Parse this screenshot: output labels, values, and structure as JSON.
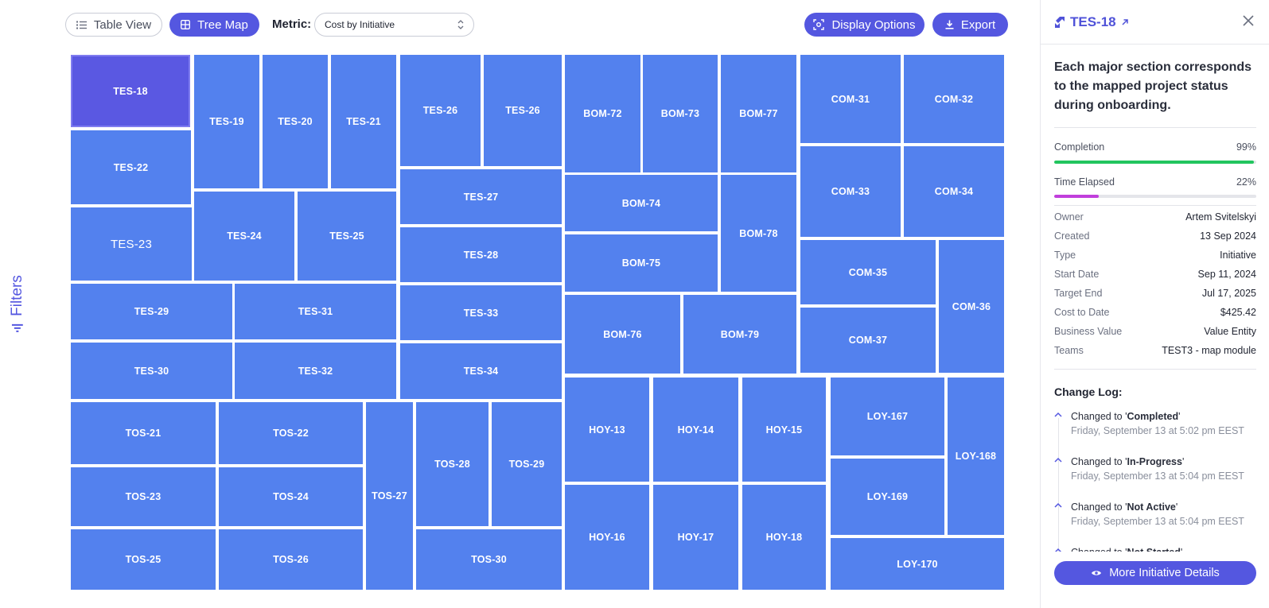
{
  "filters": {
    "label": "Filters"
  },
  "toolbar": {
    "table_view": "Table View",
    "tree_map": "Tree Map",
    "metric_label": "Metric:",
    "metric_value": "Cost by Initiative",
    "display_options": "Display Options",
    "export": "Export"
  },
  "treemap": {
    "selected": "TES-18",
    "tiles": [
      "TES-18",
      "TES-19",
      "TES-20",
      "TES-21",
      "TES-26",
      "TES-26",
      "BOM-72",
      "BOM-73",
      "BOM-77",
      "COM-31",
      "COM-32",
      "TES-22",
      "TES-27",
      "BOM-74",
      "BOM-78",
      "COM-33",
      "COM-34",
      "TES-23",
      "TES-24",
      "TES-25",
      "TES-28",
      "BOM-75",
      "COM-35",
      "COM-36",
      "TES-29",
      "TES-31",
      "TES-33",
      "BOM-76",
      "BOM-79",
      "COM-37",
      "TES-30",
      "TES-32",
      "TES-34",
      "TOS-21",
      "TOS-22",
      "TOS-27",
      "TOS-28",
      "TOS-29",
      "HOY-13",
      "HOY-14",
      "HOY-15",
      "LOY-167",
      "LOY-168",
      "TOS-23",
      "TOS-24",
      "LOY-169",
      "TOS-25",
      "TOS-26",
      "TOS-30",
      "HOY-16",
      "HOY-17",
      "HOY-18",
      "LOY-170"
    ]
  },
  "panel": {
    "title": "TES-18",
    "description": "Each major section corresponds to the mapped project status during onboarding.",
    "completion": {
      "label": "Completion",
      "value": "99%",
      "fraction": 0.99,
      "color": "#22c55e"
    },
    "elapsed": {
      "label": "Time Elapsed",
      "value": "22%",
      "fraction": 0.22,
      "color": "#c13fdc"
    },
    "details": [
      {
        "label": "Owner",
        "value": "Artem Svitelskyi"
      },
      {
        "label": "Created",
        "value": "13 Sep 2024"
      },
      {
        "label": "Type",
        "value": "Initiative"
      },
      {
        "label": "Start Date",
        "value": "Sep 11, 2024"
      },
      {
        "label": "Target End",
        "value": "Jul 17, 2025"
      },
      {
        "label": "Cost to Date",
        "value": "$425.42"
      },
      {
        "label": "Business Value",
        "value": "Value Entity"
      },
      {
        "label": "Teams",
        "value": "TEST3 - map module"
      }
    ],
    "change_log_title": "Change Log:",
    "change_log": [
      {
        "prefix": "Changed to '",
        "status": "Completed",
        "suffix": "'",
        "time": "Friday, September 13 at 5:02 pm EEST"
      },
      {
        "prefix": "Changed to '",
        "status": "In-Progress",
        "suffix": "'",
        "time": "Friday, September 13 at 5:04 pm EEST"
      },
      {
        "prefix": "Changed to '",
        "status": "Not Active",
        "suffix": "'",
        "time": "Friday, September 13 at 5:04 pm EEST"
      },
      {
        "prefix": "Changed to '",
        "status": "Not Started",
        "suffix": "'",
        "time": ""
      }
    ],
    "more_button": "More Initiative Details"
  },
  "colors": {
    "accent": "#5457e0",
    "tile": "#5381ee",
    "tile_selected": "#5a58e2"
  }
}
